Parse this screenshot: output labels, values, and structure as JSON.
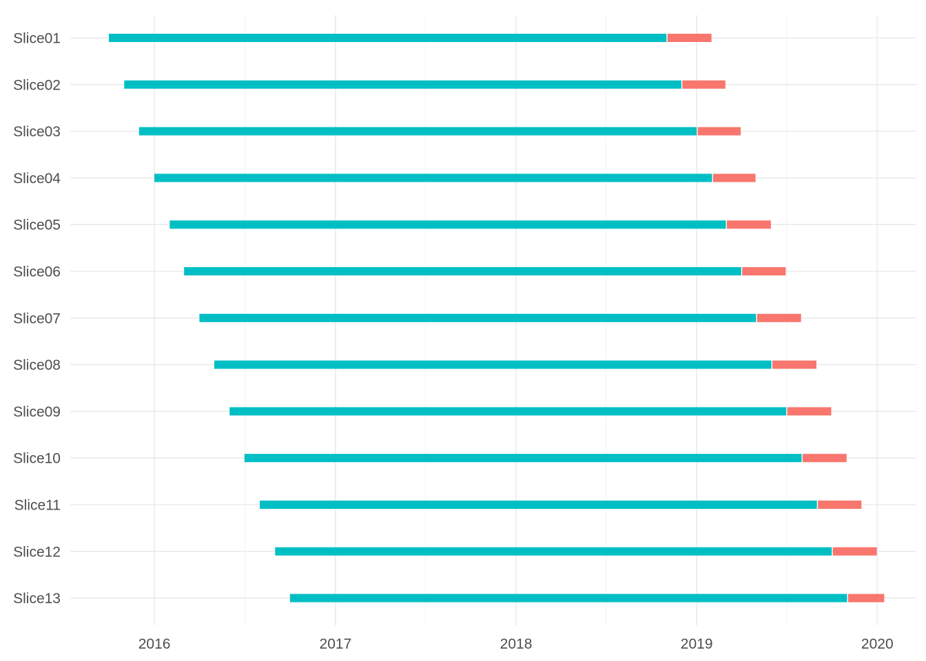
{
  "chart_data": {
    "type": "bar",
    "orientation": "horizontal",
    "subtype": "timeline-segments",
    "title": "",
    "xlabel": "",
    "ylabel": "",
    "x_ticks": [
      "2016",
      "2017",
      "2018",
      "2019",
      "2020"
    ],
    "xlim": [
      "2015-07-15",
      "2020-03-20"
    ],
    "grid": true,
    "legend": "none",
    "colors": {
      "train": "#00BFC4",
      "test": "#F8766D"
    },
    "series": [
      {
        "values": [
          {
            "start": "2015-10-01",
            "end": "2018-11-01"
          },
          {
            "start": "2015-11-01",
            "end": "2018-12-01"
          },
          {
            "start": "2015-12-01",
            "end": "2019-01-01"
          },
          {
            "start": "2016-01-01",
            "end": "2019-02-01"
          },
          {
            "start": "2016-02-01",
            "end": "2019-03-01"
          },
          {
            "start": "2016-03-01",
            "end": "2019-04-01"
          },
          {
            "start": "2016-04-01",
            "end": "2019-05-01"
          },
          {
            "start": "2016-05-01",
            "end": "2019-06-01"
          },
          {
            "start": "2016-06-01",
            "end": "2019-07-01"
          },
          {
            "start": "2016-07-01",
            "end": "2019-08-01"
          },
          {
            "start": "2016-08-01",
            "end": "2019-09-01"
          },
          {
            "start": "2016-09-01",
            "end": "2019-10-01"
          },
          {
            "start": "2016-10-01",
            "end": "2019-11-01"
          }
        ]
      },
      {
        "values": [
          {
            "start": "2018-11-01",
            "end": "2019-01-31"
          },
          {
            "start": "2018-12-01",
            "end": "2019-02-28"
          },
          {
            "start": "2019-01-01",
            "end": "2019-03-31"
          },
          {
            "start": "2019-02-01",
            "end": "2019-04-30"
          },
          {
            "start": "2019-03-01",
            "end": "2019-05-31"
          },
          {
            "start": "2019-04-01",
            "end": "2019-06-30"
          },
          {
            "start": "2019-05-01",
            "end": "2019-07-31"
          },
          {
            "start": "2019-06-01",
            "end": "2019-08-31"
          },
          {
            "start": "2019-07-01",
            "end": "2019-09-30"
          },
          {
            "start": "2019-08-01",
            "end": "2019-10-31"
          },
          {
            "start": "2019-09-01",
            "end": "2019-11-30"
          },
          {
            "start": "2019-10-01",
            "end": "2019-12-31"
          },
          {
            "start": "2019-11-01",
            "end": "2020-01-15"
          }
        ]
      }
    ],
    "categories": [
      "Slice01",
      "Slice02",
      "Slice03",
      "Slice04",
      "Slice05",
      "Slice06",
      "Slice07",
      "Slice08",
      "Slice09",
      "Slice10",
      "Slice11",
      "Slice12",
      "Slice13"
    ]
  }
}
